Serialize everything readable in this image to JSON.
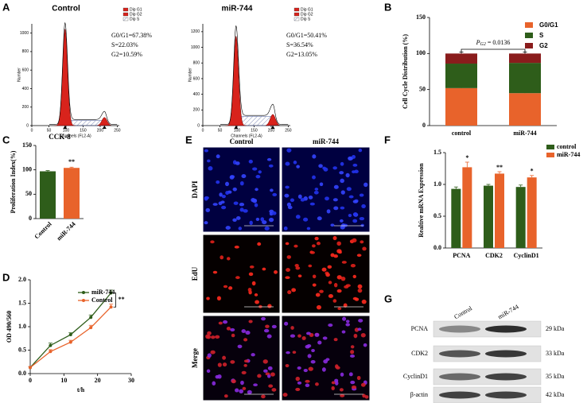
{
  "figure": {
    "panel_letters": [
      "A",
      "B",
      "C",
      "D",
      "E",
      "F",
      "G"
    ],
    "flow": [
      {
        "title": "Control",
        "legend": [
          "Dip G1",
          "Dip G2",
          "Dip S"
        ],
        "stats": [
          "G0/G1=67.38%",
          "S=22.03%",
          "G2=10.59%"
        ],
        "ylabel": "Number",
        "xlabel": "Channels (FL2-A)",
        "ylim": [
          0,
          1100
        ],
        "yticks": [
          0,
          200,
          400,
          600,
          800,
          1000
        ],
        "xlim": [
          0,
          256
        ],
        "xticks": [
          0,
          50,
          100,
          150,
          200,
          250
        ]
      },
      {
        "title": "miR-744",
        "legend": [
          "Dip G1",
          "Dip G2",
          "Dip S"
        ],
        "stats": [
          "G0/G1=50.41%",
          "S=36.54%",
          "G2=13.05%"
        ],
        "ylabel": "Number",
        "xlabel": "Channels (FL2-A)",
        "ylim": [
          0,
          1300
        ],
        "yticks": [
          0,
          200,
          400,
          600,
          800,
          1000,
          1200
        ],
        "xlim": [
          0,
          256
        ],
        "xticks": [
          0,
          50,
          100,
          150,
          200,
          250
        ]
      }
    ],
    "edu": {
      "columns": [
        "Control",
        "miR-744"
      ],
      "rows": [
        "DAPI",
        "EdU",
        "Merge"
      ]
    },
    "blot": {
      "columns": [
        "Control",
        "miR-744"
      ],
      "rows": [
        "PCNA",
        "CDK2",
        "CyclinD1",
        "β-actin"
      ],
      "sizes": [
        "29 kDa",
        "33 kDa",
        "35 kDa",
        "42 kDa"
      ]
    }
  },
  "chart_data": [
    {
      "type": "stacked-bar",
      "ylabel": "Cell Cycle Distribution (%)",
      "categories": [
        "control",
        "miR-744"
      ],
      "series": [
        {
          "name": "G0/G1",
          "color": "#e8632b",
          "values": [
            52,
            45
          ],
          "errors": [
            6,
            2
          ]
        },
        {
          "name": "S",
          "color": "#2e5d1a",
          "values": [
            34,
            42
          ]
        },
        {
          "name": "G2",
          "color": "#8a1c1c",
          "values": [
            14,
            13
          ],
          "errors": [
            2,
            2
          ]
        }
      ],
      "annotation": {
        "p": "P",
        "sub": "G2",
        "text": " = 0.0136"
      },
      "ylim": [
        0,
        150
      ],
      "yticks": [
        0,
        50,
        100,
        150
      ]
    },
    {
      "type": "bar",
      "title": "CCK-8",
      "ylabel": "Proliferation Index(%)",
      "categories": [
        "Control",
        "miR-744"
      ],
      "values": [
        97,
        104
      ],
      "errors": [
        1.5,
        1.5
      ],
      "colors": [
        "#2e5d1a",
        "#e8632b"
      ],
      "significance": [
        null,
        "**"
      ],
      "ylim": [
        0,
        150
      ],
      "yticks": [
        0,
        50,
        100,
        150
      ]
    },
    {
      "type": "line",
      "ylabel": "OD 490/560",
      "xlabel": "t/h",
      "x": [
        0,
        6,
        12,
        18,
        24
      ],
      "series": [
        {
          "name": "miR-744",
          "color": "#2e5d1a",
          "values": [
            0.13,
            0.6,
            0.83,
            1.2,
            1.72
          ],
          "errors": [
            0.02,
            0.05,
            0.04,
            0.05,
            0.06
          ]
        },
        {
          "name": "Control",
          "color": "#e8632b",
          "values": [
            0.13,
            0.47,
            0.67,
            0.98,
            1.42
          ],
          "errors": [
            0.02,
            0.04,
            0.04,
            0.05,
            0.06
          ]
        }
      ],
      "annotation": "**",
      "xlim": [
        0,
        30
      ],
      "xticks": [
        0,
        10,
        20,
        30
      ],
      "ylim": [
        0,
        2
      ],
      "yticks": [
        {
          "value": 0,
          "label": "0.0"
        },
        0.5,
        {
          "value": 1,
          "label": "1.0"
        },
        1.5,
        {
          "value": 2,
          "label": "2.0"
        }
      ]
    },
    {
      "type": "grouped-bar",
      "ylabel": "Realtive mRNA Expression",
      "categories": [
        "PCNA",
        "CDK2",
        "CyclinD1"
      ],
      "series": [
        {
          "name": "control",
          "color": "#2e5d1a",
          "values": [
            0.93,
            0.98,
            0.96
          ],
          "errors": [
            0.03,
            0.02,
            0.03
          ]
        },
        {
          "name": "miR-744",
          "color": "#e8632b",
          "values": [
            1.27,
            1.17,
            1.11
          ],
          "errors": [
            0.08,
            0.03,
            0.03
          ]
        }
      ],
      "significance": [
        "*",
        "**",
        "*"
      ],
      "ylim": [
        0,
        1.5
      ],
      "yticks": [
        {
          "value": 0,
          "label": "0.0"
        },
        0.5,
        {
          "value": 1,
          "label": "1.0"
        },
        1.5
      ]
    }
  ]
}
